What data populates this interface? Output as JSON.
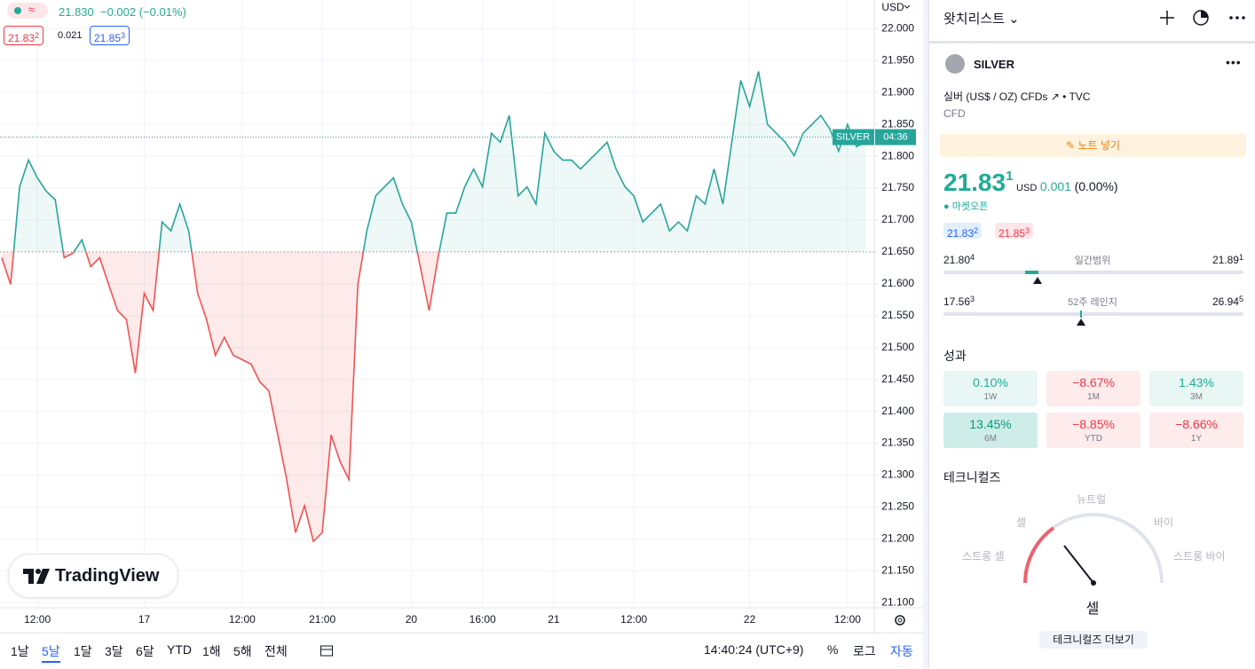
{
  "legend": {
    "price": "21.830",
    "change": "−0.002 (−0.01%)",
    "bid": "21.83",
    "bid_sup": "2",
    "spread": "0.021",
    "ask": "21.85",
    "ask_sup": "3"
  },
  "chart_data": {
    "type": "line",
    "currency": "USD",
    "categories": [
      null,
      null,
      null,
      null,
      "12:00",
      null,
      null,
      null,
      null,
      null,
      null,
      null,
      null,
      null,
      null,
      null,
      "17",
      null,
      null,
      null,
      null,
      null,
      null,
      null,
      null,
      null,
      null,
      "12:00",
      null,
      null,
      null,
      null,
      null,
      null,
      null,
      null,
      "21:00",
      null,
      null,
      null,
      null,
      null,
      null,
      null,
      null,
      null,
      "20",
      null,
      null,
      null,
      null,
      null,
      null,
      null,
      "16:00",
      null,
      null,
      null,
      null,
      null,
      null,
      null,
      "21",
      null,
      null,
      null,
      null,
      null,
      null,
      null,
      null,
      "12:00",
      null,
      null,
      null,
      null,
      null,
      null,
      null,
      null,
      null,
      null,
      null,
      null,
      "22",
      null,
      null,
      null,
      null,
      null,
      null,
      null,
      null,
      null,
      null,
      "12:00",
      null,
      null
    ],
    "values": [
      21.641,
      21.599,
      21.752,
      21.794,
      21.766,
      21.745,
      21.732,
      21.641,
      21.648,
      21.669,
      21.627,
      21.641,
      21.599,
      21.558,
      21.544,
      21.46,
      21.585,
      21.558,
      21.697,
      21.683,
      21.725,
      21.683,
      21.585,
      21.544,
      21.488,
      21.516,
      21.488,
      21.481,
      21.474,
      21.446,
      21.432,
      21.363,
      21.293,
      21.21,
      21.252,
      21.196,
      21.21,
      21.363,
      21.321,
      21.293,
      21.599,
      21.683,
      21.738,
      21.752,
      21.766,
      21.725,
      21.697,
      21.627,
      21.558,
      21.641,
      21.711,
      21.711,
      21.752,
      21.78,
      21.752,
      21.836,
      21.822,
      21.864,
      21.738,
      21.752,
      21.725,
      21.836,
      21.808,
      21.794,
      21.794,
      21.78,
      21.794,
      21.808,
      21.822,
      21.78,
      21.752,
      21.738,
      21.697,
      21.711,
      21.725,
      21.683,
      21.697,
      21.683,
      21.738,
      21.725,
      21.78,
      21.725,
      21.822,
      21.919,
      21.878,
      21.933,
      21.85,
      21.836,
      21.822,
      21.801,
      21.836,
      21.85,
      21.864,
      21.843,
      21.808,
      21.85,
      21.815,
      21.822
    ],
    "baseline": 21.65,
    "last_price": 21.83,
    "price_tag": {
      "name": "SILVER",
      "countdown": "04:36"
    },
    "colors": {
      "up": "#26a69a",
      "down": "#ef5350"
    },
    "ylim": [
      21.092,
      22.045
    ],
    "yticks": [
      {
        "value": 21.1,
        "label": "21.100"
      },
      {
        "value": 21.15,
        "label": "21.150"
      },
      {
        "value": 21.2,
        "label": "21.200"
      },
      {
        "value": 21.25,
        "label": "21.250"
      },
      {
        "value": 21.3,
        "label": "21.300"
      },
      {
        "value": 21.35,
        "label": "21.350"
      },
      {
        "value": 21.4,
        "label": "21.400"
      },
      {
        "value": 21.45,
        "label": "21.450"
      },
      {
        "value": 21.5,
        "label": "21.500"
      },
      {
        "value": 21.55,
        "label": "21.550"
      },
      {
        "value": 21.6,
        "label": "21.600"
      },
      {
        "value": 21.65,
        "label": "21.650"
      },
      {
        "value": 21.7,
        "label": "21.700"
      },
      {
        "value": 21.75,
        "label": "21.750"
      },
      {
        "value": 21.8,
        "label": "21.800"
      },
      {
        "value": 21.85,
        "label": "21.850"
      },
      {
        "value": 21.9,
        "label": "21.900"
      },
      {
        "value": 21.95,
        "label": "21.950"
      },
      {
        "value": 22.0,
        "label": "22.000"
      }
    ],
    "grid": true
  },
  "logo": "TradingView",
  "toolbar": {
    "ranges": [
      "1날",
      "5날",
      "1달",
      "3달",
      "6달",
      "YTD",
      "1해",
      "5해",
      "전체"
    ],
    "active": 1,
    "clock": "14:40:24 (UTC+9)",
    "percent": "%",
    "log": "로그",
    "auto": "자동"
  },
  "watchlist": {
    "title": "왓치리스트",
    "symbol": "SILVER",
    "description": "실버 (US$ / OZ) CFDs",
    "source": "• TVC",
    "kind": "CFD",
    "note_button": "노트 넣기",
    "price": "21.83",
    "price_sup": "1",
    "currency": "USD",
    "change": "0.001",
    "change_pct": "(0.00%)",
    "market_status": "마켓오픈",
    "bid": "21.83",
    "bid_sup": "2",
    "ask": "21.85",
    "ask_sup": "3",
    "day_range": {
      "label": "일간범위",
      "low": "21.80",
      "low_sup": "4",
      "high": "21.89",
      "high_sup": "1"
    },
    "year_range": {
      "label": "52주 레인지",
      "low": "17.56",
      "low_sup": "3",
      "high": "26.94",
      "high_sup": "5"
    },
    "performance": {
      "title": "성과",
      "items": [
        {
          "value": "0.10%",
          "period": "1W"
        },
        {
          "value": "−8.67%",
          "period": "1M"
        },
        {
          "value": "1.43%",
          "period": "3M"
        },
        {
          "value": "13.45%",
          "period": "6M"
        },
        {
          "value": "−8.85%",
          "period": "YTD"
        },
        {
          "value": "−8.66%",
          "period": "1Y"
        }
      ]
    },
    "technicals": {
      "title": "테크니컬즈",
      "strong_sell": "스트롱 셀",
      "sell": "셀",
      "neutral": "뉴트럴",
      "buy": "바이",
      "strong_buy": "스트롱 바이",
      "result": "셀",
      "button": "테크니컬즈 더보기"
    }
  }
}
